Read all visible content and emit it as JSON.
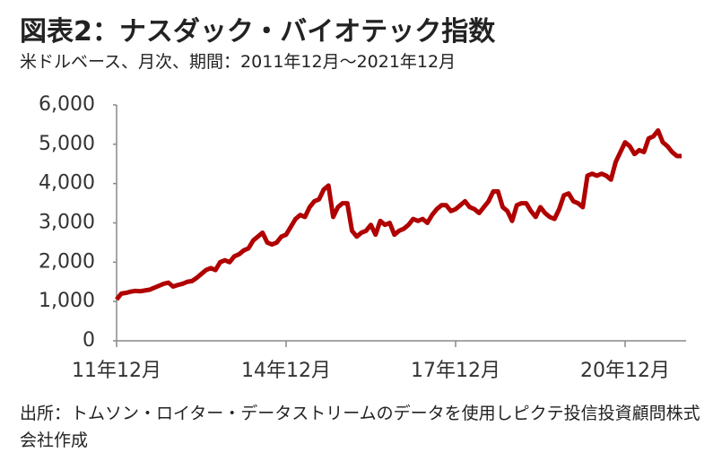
{
  "chart_data": {
    "type": "line",
    "title": "図表2：ナスダック・バイオテック指数",
    "subtitle": "米ドルベース、月次、期間：2011年12月～2021年12月",
    "source": "出所：トムソン・ロイター・データストリームのデータを使用しピクテ投信投資顧問株式会社作成",
    "categories": [
      "11年12月",
      null,
      null,
      null,
      null,
      null,
      null,
      null,
      null,
      null,
      null,
      null,
      null,
      null,
      null,
      null,
      null,
      null,
      null,
      null,
      null,
      null,
      null,
      null,
      null,
      null,
      null,
      null,
      null,
      null,
      null,
      null,
      null,
      null,
      null,
      null,
      "14年12月",
      null,
      null,
      null,
      null,
      null,
      null,
      null,
      null,
      null,
      null,
      null,
      null,
      null,
      null,
      null,
      null,
      null,
      null,
      null,
      null,
      null,
      null,
      null,
      null,
      null,
      null,
      null,
      null,
      null,
      null,
      null,
      null,
      null,
      null,
      null,
      "17年12月",
      null,
      null,
      null,
      null,
      null,
      null,
      null,
      null,
      null,
      null,
      null,
      null,
      null,
      null,
      null,
      null,
      null,
      null,
      null,
      null,
      null,
      null,
      null,
      null,
      null,
      null,
      null,
      null,
      null,
      null,
      null,
      null,
      null,
      null,
      null,
      "20年12月",
      null,
      null,
      null,
      null,
      null,
      null,
      null,
      null,
      null,
      null,
      null,
      null
    ],
    "series": [
      {
        "name": "ナスダック・バイオテック指数",
        "color": "#b00000",
        "values": [
          1050,
          1200,
          1220,
          1250,
          1270,
          1260,
          1280,
          1300,
          1350,
          1400,
          1450,
          1480,
          1380,
          1420,
          1450,
          1500,
          1520,
          1600,
          1700,
          1800,
          1850,
          1800,
          2000,
          2050,
          2000,
          2150,
          2200,
          2300,
          2350,
          2550,
          2650,
          2750,
          2500,
          2450,
          2500,
          2650,
          2700,
          2900,
          3100,
          3200,
          3150,
          3400,
          3550,
          3600,
          3850,
          3950,
          3150,
          3400,
          3500,
          3500,
          2800,
          2650,
          2750,
          2800,
          2950,
          2700,
          3050,
          2950,
          3000,
          2700,
          2800,
          2850,
          2950,
          3100,
          3050,
          3100,
          3000,
          3200,
          3350,
          3450,
          3450,
          3300,
          3350,
          3450,
          3550,
          3400,
          3350,
          3250,
          3400,
          3550,
          3800,
          3800,
          3400,
          3300,
          3050,
          3450,
          3500,
          3500,
          3300,
          3150,
          3400,
          3250,
          3150,
          3100,
          3350,
          3700,
          3750,
          3550,
          3500,
          3400,
          4200,
          4250,
          4200,
          4250,
          4200,
          4100,
          4550,
          4800,
          5050,
          4950,
          4750,
          4850,
          4800,
          5150,
          5200,
          5350,
          5050,
          4950,
          4800,
          4700,
          4700
        ]
      }
    ],
    "ylim": [
      0,
      6000
    ],
    "yticks": [
      0,
      {
        "value": 1000,
        "label": "1,000"
      },
      {
        "value": 2000,
        "label": "2,000"
      },
      {
        "value": 3000,
        "label": "3,000"
      },
      {
        "value": 4000,
        "label": "4,000"
      },
      {
        "value": 5000,
        "label": "5,000"
      },
      {
        "value": 6000,
        "label": "6,000"
      }
    ],
    "grid": false
  }
}
